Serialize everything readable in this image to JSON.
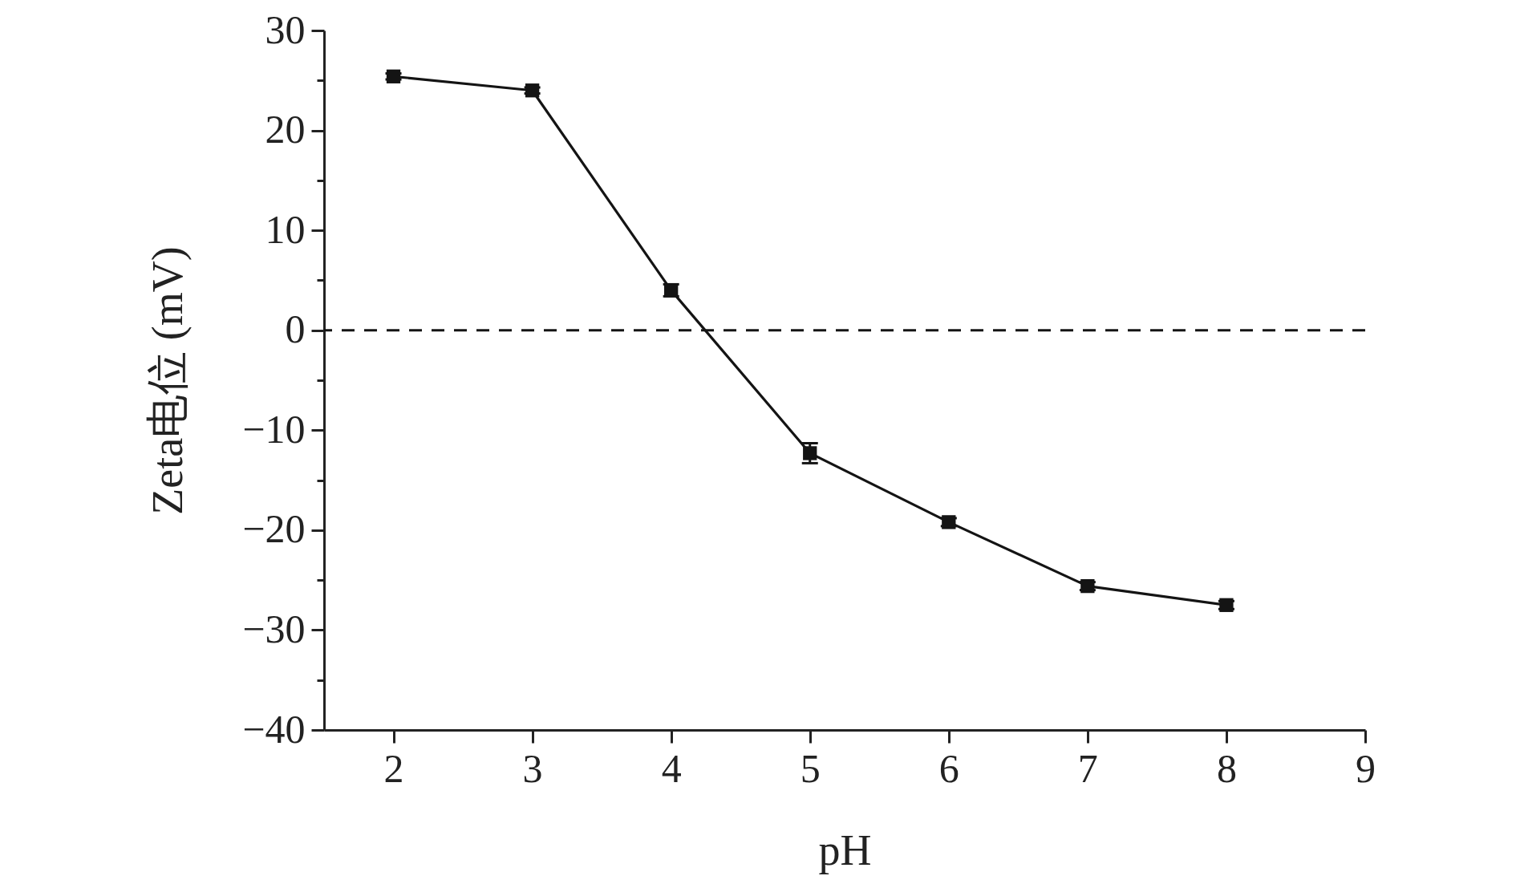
{
  "chart_data": {
    "type": "line",
    "xlabel": "pH",
    "ylabel": "Zeta电位 (mV)",
    "x": [
      2,
      3,
      4,
      5,
      6,
      7,
      8
    ],
    "series": [
      {
        "color": "#141414",
        "values": [
          25.4,
          24.0,
          4.0,
          -12.3,
          -19.2,
          -25.6,
          -27.5
        ],
        "errors": [
          0.3,
          0.3,
          0.6,
          1.0,
          0.4,
          0.4,
          0.4
        ]
      }
    ],
    "marker": "square",
    "line_style": "solid",
    "grid": false,
    "xlim": [
      1.5,
      9
    ],
    "xticks": [
      2,
      3,
      4,
      5,
      6,
      7,
      8,
      9
    ],
    "ylim": [
      -40,
      30
    ],
    "yticks": [
      -40,
      {
        "value": -35,
        "label": null
      },
      -30,
      {
        "value": -25,
        "label": null
      },
      -20,
      {
        "value": -15,
        "label": null
      },
      -10,
      {
        "value": -5,
        "label": null
      },
      0,
      {
        "value": 5,
        "label": null
      },
      10,
      {
        "value": 15,
        "label": null
      },
      20,
      {
        "value": 25,
        "label": null
      },
      30
    ],
    "ref_lines": [
      {
        "axis": "y",
        "value": 0,
        "color": "#141414",
        "line_style": "dashed"
      }
    ]
  }
}
